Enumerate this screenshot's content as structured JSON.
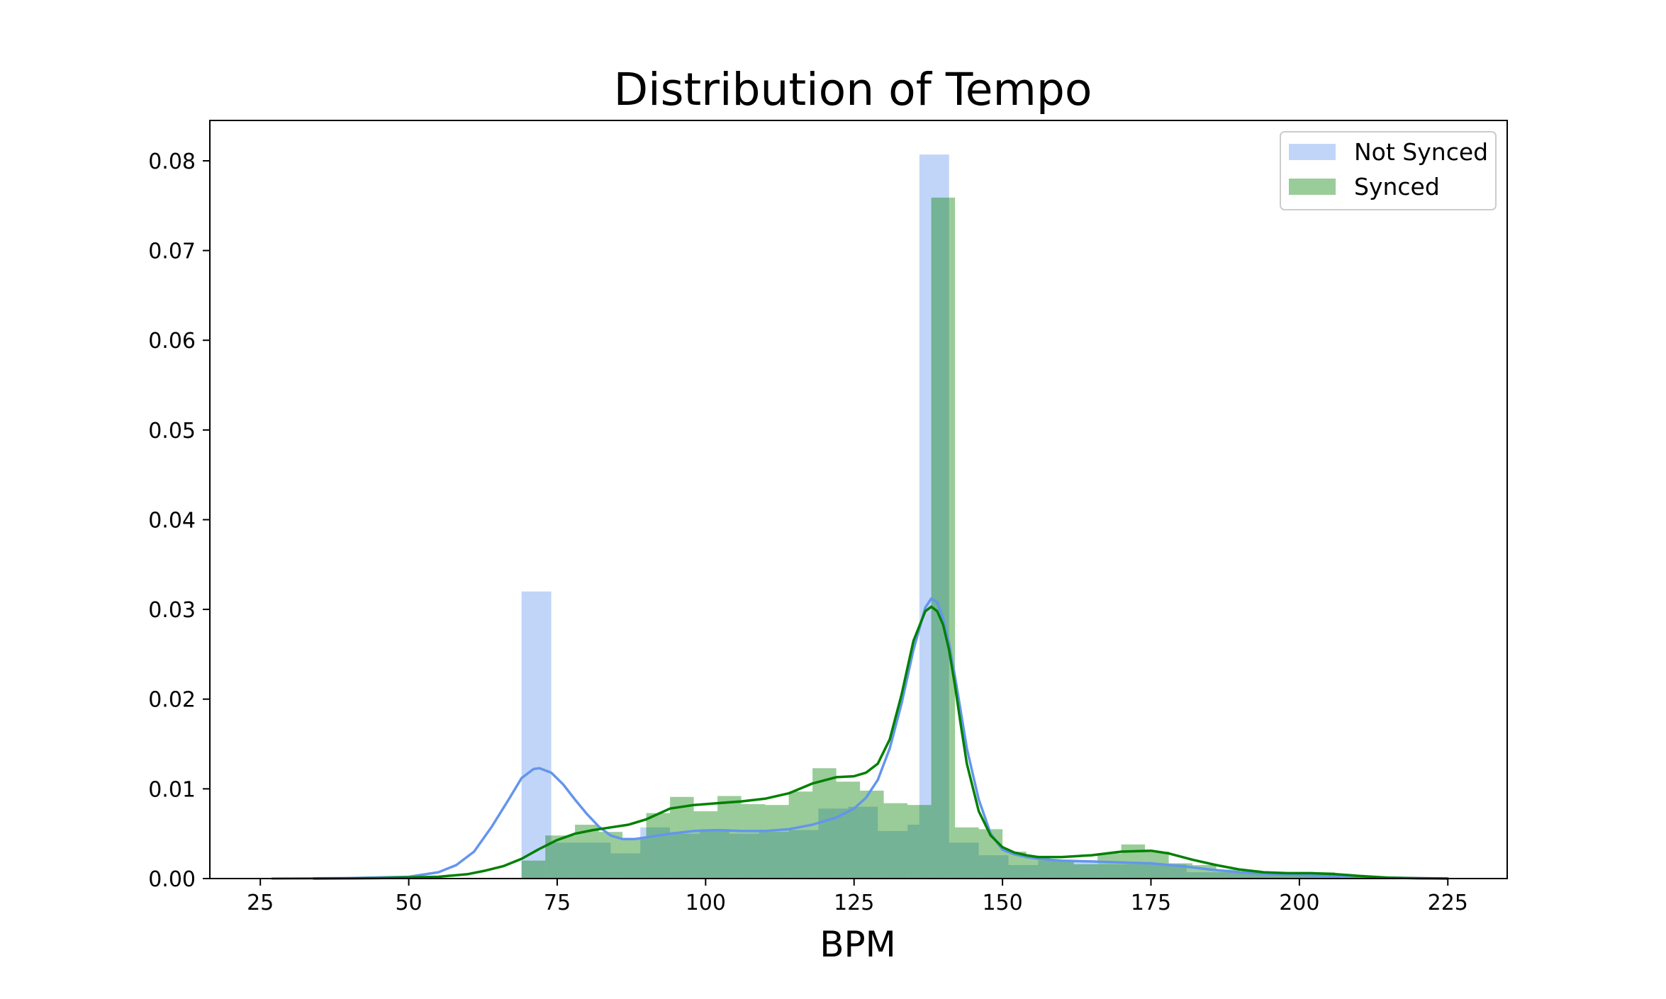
{
  "chart_data": {
    "type": "bar",
    "title": "Distribution of Tempo",
    "xlabel": "BPM",
    "ylabel": "",
    "xlim": [
      16.5,
      235
    ],
    "ylim": [
      0,
      0.0845
    ],
    "xticks": [
      25,
      50,
      75,
      100,
      125,
      150,
      175,
      200,
      225
    ],
    "yticks": [
      0.0,
      0.01,
      0.02,
      0.03,
      0.04,
      0.05,
      0.06,
      0.07,
      0.08
    ],
    "xtick_labels": [
      "25",
      "50",
      "75",
      "100",
      "125",
      "150",
      "175",
      "200",
      "225"
    ],
    "ytick_labels": [
      "0.00",
      "0.01",
      "0.02",
      "0.03",
      "0.04",
      "0.05",
      "0.06",
      "0.07",
      "0.08"
    ],
    "legend_position": "top-right",
    "grid": false,
    "series": [
      {
        "name": "Not Synced",
        "kind": "histogram",
        "bar_color": "#6495ed",
        "bar_opacity": 0.4,
        "bins": [
          {
            "x0": 69.0,
            "x1": 74.0,
            "value": 0.032
          },
          {
            "x0": 74.0,
            "x1": 79.0,
            "value": 0.004
          },
          {
            "x0": 79.0,
            "x1": 84.0,
            "value": 0.004
          },
          {
            "x0": 84.0,
            "x1": 89.0,
            "value": 0.0028
          },
          {
            "x0": 89.0,
            "x1": 94.0,
            "value": 0.0057
          },
          {
            "x0": 94.0,
            "x1": 99.0,
            "value": 0.005
          },
          {
            "x0": 99.0,
            "x1": 104.0,
            "value": 0.0055
          },
          {
            "x0": 104.0,
            "x1": 109.0,
            "value": 0.005
          },
          {
            "x0": 109.0,
            "x1": 114.0,
            "value": 0.0052
          },
          {
            "x0": 114.0,
            "x1": 119.0,
            "value": 0.0054
          },
          {
            "x0": 119.0,
            "x1": 124.0,
            "value": 0.0078
          },
          {
            "x0": 124.0,
            "x1": 129.0,
            "value": 0.008
          },
          {
            "x0": 129.0,
            "x1": 134.0,
            "value": 0.0053
          },
          {
            "x0": 134.0,
            "x1": 136.0,
            "value": 0.006
          },
          {
            "x0": 136.0,
            "x1": 141.0,
            "value": 0.0807
          },
          {
            "x0": 141.0,
            "x1": 146.0,
            "value": 0.004
          },
          {
            "x0": 146.0,
            "x1": 151.0,
            "value": 0.0026
          },
          {
            "x0": 151.0,
            "x1": 156.0,
            "value": 0.0015
          },
          {
            "x0": 156.0,
            "x1": 166.0,
            "value": 0.002
          },
          {
            "x0": 166.0,
            "x1": 181.0,
            "value": 0.0016
          },
          {
            "x0": 181.0,
            "x1": 195.0,
            "value": 0.0007
          },
          {
            "x0": 195.0,
            "x1": 207.0,
            "value": 0.0004
          }
        ],
        "kde": {
          "color": "#6495ed",
          "x": [
            27,
            40,
            50,
            55,
            58,
            61,
            64,
            67,
            69,
            71,
            72,
            74,
            76,
            78,
            80,
            82,
            84,
            86,
            88,
            90,
            94,
            98,
            102,
            106,
            110,
            114,
            118,
            122,
            125,
            127,
            129,
            131,
            133,
            135,
            137,
            138,
            139,
            140,
            141,
            142,
            143,
            144,
            146,
            148,
            150,
            152,
            154,
            156,
            160,
            165,
            170,
            175,
            180,
            185,
            190,
            195,
            200,
            205,
            210,
            215,
            220,
            225
          ],
          "y": [
            0.0,
            5e-05,
            0.0002,
            0.0007,
            0.0015,
            0.003,
            0.0058,
            0.009,
            0.0112,
            0.0122,
            0.0123,
            0.0118,
            0.0105,
            0.0088,
            0.0072,
            0.0058,
            0.0048,
            0.0044,
            0.0044,
            0.0046,
            0.005,
            0.0053,
            0.0054,
            0.0053,
            0.0053,
            0.0055,
            0.006,
            0.0068,
            0.0078,
            0.009,
            0.011,
            0.0145,
            0.0195,
            0.0255,
            0.0302,
            0.0312,
            0.0308,
            0.029,
            0.0262,
            0.0225,
            0.0185,
            0.0145,
            0.0088,
            0.005,
            0.0032,
            0.0027,
            0.0024,
            0.0022,
            0.002,
            0.0019,
            0.0018,
            0.0017,
            0.0014,
            0.001,
            0.0007,
            0.0005,
            0.0004,
            0.0003,
            0.0002,
            0.0001,
            5e-05,
            0.0
          ]
        }
      },
      {
        "name": "Synced",
        "kind": "histogram",
        "bar_color": "#008000",
        "bar_opacity": 0.4,
        "bins": [
          {
            "x0": 69.0,
            "x1": 73.0,
            "value": 0.002
          },
          {
            "x0": 73.0,
            "x1": 78.0,
            "value": 0.0048
          },
          {
            "x0": 78.0,
            "x1": 82.0,
            "value": 0.006
          },
          {
            "x0": 82.0,
            "x1": 86.0,
            "value": 0.0052
          },
          {
            "x0": 86.0,
            "x1": 90.0,
            "value": 0.0045
          },
          {
            "x0": 90.0,
            "x1": 94.0,
            "value": 0.0073
          },
          {
            "x0": 94.0,
            "x1": 98.0,
            "value": 0.0091
          },
          {
            "x0": 98.0,
            "x1": 102.0,
            "value": 0.0075
          },
          {
            "x0": 102.0,
            "x1": 106.0,
            "value": 0.0092
          },
          {
            "x0": 106.0,
            "x1": 110.0,
            "value": 0.0083
          },
          {
            "x0": 110.0,
            "x1": 114.0,
            "value": 0.0082
          },
          {
            "x0": 114.0,
            "x1": 118.0,
            "value": 0.0097
          },
          {
            "x0": 118.0,
            "x1": 122.0,
            "value": 0.0123
          },
          {
            "x0": 122.0,
            "x1": 126.0,
            "value": 0.0108
          },
          {
            "x0": 126.0,
            "x1": 130.0,
            "value": 0.0098
          },
          {
            "x0": 130.0,
            "x1": 134.0,
            "value": 0.0084
          },
          {
            "x0": 134.0,
            "x1": 138.0,
            "value": 0.0082
          },
          {
            "x0": 138.0,
            "x1": 142.0,
            "value": 0.0759
          },
          {
            "x0": 142.0,
            "x1": 146.0,
            "value": 0.0057
          },
          {
            "x0": 146.0,
            "x1": 150.0,
            "value": 0.0055
          },
          {
            "x0": 150.0,
            "x1": 154.0,
            "value": 0.003
          },
          {
            "x0": 154.0,
            "x1": 158.0,
            "value": 0.0025
          },
          {
            "x0": 158.0,
            "x1": 162.0,
            "value": 0.002
          },
          {
            "x0": 162.0,
            "x1": 166.0,
            "value": 0.0016
          },
          {
            "x0": 166.0,
            "x1": 170.0,
            "value": 0.0028
          },
          {
            "x0": 170.0,
            "x1": 174.0,
            "value": 0.0038
          },
          {
            "x0": 174.0,
            "x1": 178.0,
            "value": 0.003
          },
          {
            "x0": 178.0,
            "x1": 182.0,
            "value": 0.0017
          },
          {
            "x0": 182.0,
            "x1": 186.0,
            "value": 0.0015
          },
          {
            "x0": 186.0,
            "x1": 190.0,
            "value": 0.001
          },
          {
            "x0": 190.0,
            "x1": 194.0,
            "value": 0.0006
          },
          {
            "x0": 194.0,
            "x1": 198.0,
            "value": 0.0007
          },
          {
            "x0": 198.0,
            "x1": 202.0,
            "value": 0.0005
          },
          {
            "x0": 202.0,
            "x1": 206.0,
            "value": 0.0007
          },
          {
            "x0": 206.0,
            "x1": 210.0,
            "value": 0.0003
          }
        ],
        "kde": {
          "color": "#008000",
          "x": [
            34,
            45,
            55,
            60,
            63,
            66,
            69,
            72,
            75,
            78,
            81,
            84,
            87,
            90,
            94,
            98,
            102,
            106,
            110,
            114,
            118,
            122,
            125,
            127,
            129,
            131,
            133,
            135,
            137,
            138,
            139,
            140,
            141,
            142,
            143,
            144,
            146,
            148,
            150,
            152,
            154,
            156,
            160,
            165,
            170,
            175,
            178,
            182,
            186,
            190,
            194,
            198,
            202,
            206,
            210,
            215,
            220,
            225
          ],
          "y": [
            0.0,
            5e-05,
            0.0002,
            0.0005,
            0.0009,
            0.0014,
            0.0022,
            0.0033,
            0.0043,
            0.005,
            0.0054,
            0.0057,
            0.006,
            0.0066,
            0.0078,
            0.0082,
            0.0084,
            0.0086,
            0.0089,
            0.0095,
            0.0106,
            0.0113,
            0.0114,
            0.0118,
            0.0128,
            0.0155,
            0.0205,
            0.0265,
            0.0298,
            0.0303,
            0.0298,
            0.0283,
            0.0255,
            0.0215,
            0.017,
            0.0128,
            0.0075,
            0.0048,
            0.0035,
            0.0029,
            0.0026,
            0.0024,
            0.0024,
            0.0026,
            0.003,
            0.0031,
            0.0028,
            0.0021,
            0.0015,
            0.001,
            0.0007,
            0.0006,
            0.0006,
            0.0005,
            0.0003,
            0.0001,
            3e-05,
            0.0
          ]
        }
      }
    ]
  }
}
